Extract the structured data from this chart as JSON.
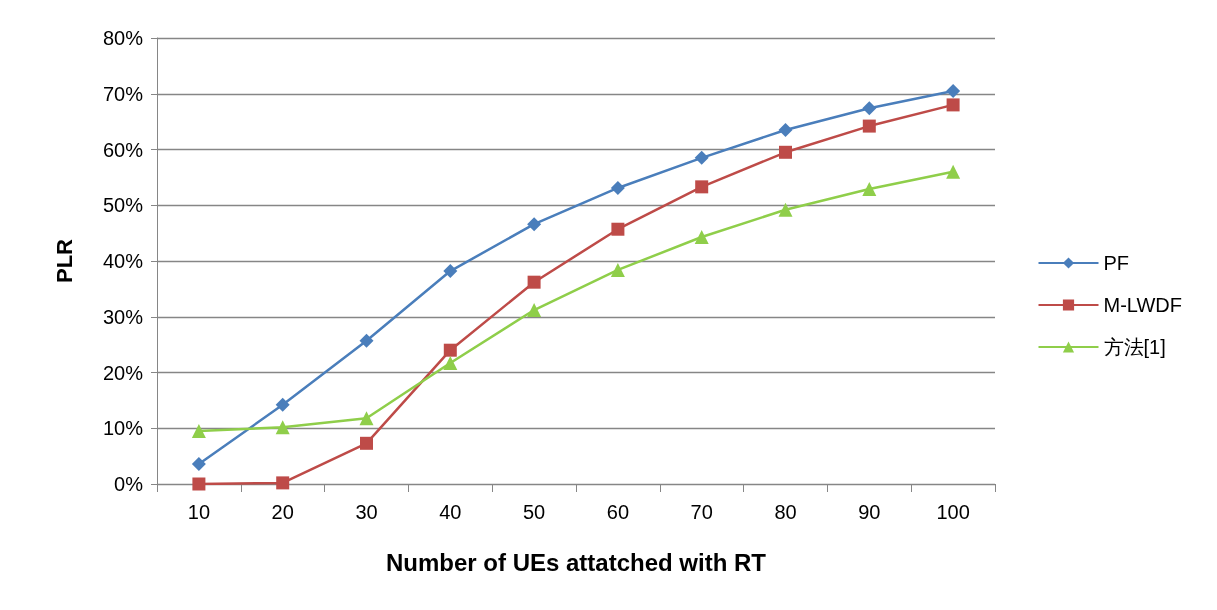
{
  "chart_data": {
    "type": "line",
    "xlabel": "Number of UEs attatched with RT",
    "ylabel": "PLR",
    "categories": [
      "10",
      "20",
      "30",
      "40",
      "50",
      "60",
      "70",
      "80",
      "90",
      "100"
    ],
    "series": [
      {
        "name": "PF",
        "color": "#4a7ebb",
        "marker": "diamond",
        "values": [
          3.6,
          14.2,
          25.7,
          38.2,
          46.6,
          53.1,
          58.5,
          63.5,
          67.4,
          70.5
        ]
      },
      {
        "name": "M-LWDF",
        "color": "#be4b48",
        "marker": "square",
        "values": [
          0,
          0.2,
          7.3,
          24,
          36.2,
          45.7,
          53.3,
          59.5,
          64.2,
          68
        ]
      },
      {
        "name": "方法[1]",
        "color": "#8fce4a",
        "marker": "triangle",
        "values": [
          9.5,
          10.2,
          11.8,
          21.7,
          31.2,
          38.4,
          44.3,
          49.2,
          52.9,
          56
        ]
      }
    ],
    "ylim": [
      0,
      80
    ],
    "yticks": [
      {
        "value": 0,
        "label": "0%"
      },
      {
        "value": 10,
        "label": "10%"
      },
      {
        "value": 20,
        "label": "20%"
      },
      {
        "value": 30,
        "label": "30%"
      },
      {
        "value": 40,
        "label": "40%"
      },
      {
        "value": 50,
        "label": "50%"
      },
      {
        "value": 60,
        "label": "60%"
      },
      {
        "value": 70,
        "label": "70%"
      },
      {
        "value": 80,
        "label": "80%"
      }
    ],
    "grid": "y",
    "legend": "right",
    "line_style": "solid"
  }
}
